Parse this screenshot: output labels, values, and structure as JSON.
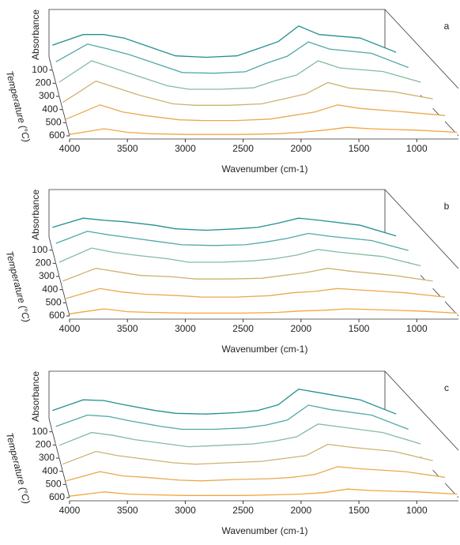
{
  "chart_data": [
    {
      "type": "waterfall",
      "panel_label": "a",
      "x_label": "Wavenumber (cm-1)",
      "y_label": "Absorbance",
      "z_label": "Temperature (°C)",
      "x": [
        4000,
        3700,
        3500,
        3300,
        3000,
        2800,
        2500,
        2200,
        2000,
        1800,
        1600,
        1400,
        1000,
        650
      ],
      "xlim": [
        4000,
        640
      ],
      "xticks": [
        4000,
        3500,
        3000,
        2500,
        2000,
        1500,
        1000
      ],
      "ylim": [
        0,
        1
      ],
      "zlim": [
        0,
        600
      ],
      "zticks": [
        100,
        200,
        300,
        400,
        500,
        600
      ],
      "series": [
        {
          "temperature": 100,
          "color": "#23908f",
          "values": [
            0.35,
            0.5,
            0.5,
            0.45,
            0.3,
            0.2,
            0.18,
            0.2,
            0.3,
            0.4,
            0.62,
            0.5,
            0.45,
            0.25
          ]
        },
        {
          "temperature": 200,
          "color": "#4fa9a6",
          "values": [
            0.3,
            0.55,
            0.48,
            0.4,
            0.25,
            0.15,
            0.14,
            0.16,
            0.28,
            0.38,
            0.58,
            0.48,
            0.42,
            0.22
          ]
        },
        {
          "temperature": 300,
          "color": "#86baa0",
          "values": [
            0.2,
            0.5,
            0.4,
            0.3,
            0.15,
            0.1,
            0.1,
            0.12,
            0.22,
            0.3,
            0.5,
            0.4,
            0.35,
            0.2
          ]
        },
        {
          "temperature": 400,
          "color": "#cdb272",
          "values": [
            0.1,
            0.4,
            0.3,
            0.2,
            0.08,
            0.06,
            0.06,
            0.08,
            0.15,
            0.22,
            0.38,
            0.3,
            0.25,
            0.15
          ]
        },
        {
          "temperature": 500,
          "color": "#e9a94f",
          "values": [
            0.05,
            0.25,
            0.15,
            0.1,
            0.04,
            0.03,
            0.03,
            0.05,
            0.1,
            0.15,
            0.25,
            0.2,
            0.15,
            0.1
          ]
        },
        {
          "temperature": 600,
          "color": "#f2a640",
          "values": [
            0.02,
            0.1,
            0.05,
            0.03,
            0.02,
            0.02,
            0.02,
            0.03,
            0.05,
            0.08,
            0.12,
            0.1,
            0.08,
            0.05
          ]
        }
      ]
    },
    {
      "type": "waterfall",
      "panel_label": "b",
      "x_label": "Wavenumber (cm-1)",
      "y_label": "Absorbance",
      "z_label": "Temperature (°C)",
      "x": [
        4000,
        3700,
        3500,
        3300,
        3000,
        2800,
        2500,
        2200,
        2000,
        1800,
        1600,
        1400,
        1000,
        650
      ],
      "xlim": [
        4000,
        640
      ],
      "xticks": [
        4000,
        3500,
        3000,
        2500,
        2000,
        1500,
        1000
      ],
      "ylim": [
        0,
        1
      ],
      "zlim": [
        0,
        600
      ],
      "zticks": [
        100,
        200,
        300,
        400,
        500,
        600
      ],
      "series": [
        {
          "temperature": 100,
          "color": "#23908f",
          "values": [
            0.32,
            0.45,
            0.42,
            0.4,
            0.35,
            0.3,
            0.28,
            0.3,
            0.32,
            0.38,
            0.45,
            0.42,
            0.35,
            0.2
          ]
        },
        {
          "temperature": 200,
          "color": "#4fa9a6",
          "values": [
            0.28,
            0.45,
            0.4,
            0.36,
            0.3,
            0.26,
            0.25,
            0.26,
            0.3,
            0.35,
            0.42,
            0.38,
            0.32,
            0.18
          ]
        },
        {
          "temperature": 300,
          "color": "#86baa0",
          "values": [
            0.2,
            0.4,
            0.34,
            0.3,
            0.25,
            0.2,
            0.2,
            0.22,
            0.25,
            0.3,
            0.38,
            0.34,
            0.28,
            0.15
          ]
        },
        {
          "temperature": 400,
          "color": "#cdb272",
          "values": [
            0.12,
            0.3,
            0.25,
            0.2,
            0.18,
            0.15,
            0.15,
            0.16,
            0.2,
            0.24,
            0.3,
            0.26,
            0.2,
            0.12
          ]
        },
        {
          "temperature": 500,
          "color": "#e9a94f",
          "values": [
            0.06,
            0.2,
            0.15,
            0.12,
            0.1,
            0.08,
            0.08,
            0.1,
            0.14,
            0.16,
            0.2,
            0.18,
            0.14,
            0.08
          ]
        },
        {
          "temperature": 600,
          "color": "#f2a640",
          "values": [
            0.03,
            0.1,
            0.06,
            0.05,
            0.04,
            0.04,
            0.04,
            0.05,
            0.07,
            0.08,
            0.1,
            0.09,
            0.07,
            0.04
          ]
        }
      ]
    },
    {
      "type": "waterfall",
      "panel_label": "c",
      "x_label": "Wavenumber (cm-1)",
      "y_label": "Absorbance",
      "z_label": "Temperature (°C)",
      "x": [
        4000,
        3700,
        3500,
        3300,
        3000,
        2800,
        2500,
        2200,
        2000,
        1800,
        1600,
        1400,
        1000,
        650
      ],
      "xlim": [
        4000,
        640
      ],
      "xticks": [
        4000,
        3500,
        3000,
        2500,
        2000,
        1500,
        1000
      ],
      "ylim": [
        0,
        1
      ],
      "zlim": [
        0,
        600
      ],
      "zticks": [
        100,
        200,
        300,
        400,
        500,
        600
      ],
      "series": [
        {
          "temperature": 100,
          "color": "#23908f",
          "values": [
            0.3,
            0.45,
            0.44,
            0.38,
            0.3,
            0.26,
            0.25,
            0.27,
            0.3,
            0.38,
            0.6,
            0.55,
            0.45,
            0.25
          ]
        },
        {
          "temperature": 200,
          "color": "#4fa9a6",
          "values": [
            0.26,
            0.42,
            0.4,
            0.34,
            0.26,
            0.22,
            0.22,
            0.24,
            0.28,
            0.35,
            0.56,
            0.5,
            0.42,
            0.22
          ]
        },
        {
          "temperature": 300,
          "color": "#86baa0",
          "values": [
            0.18,
            0.36,
            0.32,
            0.26,
            0.2,
            0.16,
            0.18,
            0.2,
            0.24,
            0.3,
            0.48,
            0.44,
            0.36,
            0.2
          ]
        },
        {
          "temperature": 400,
          "color": "#cdb272",
          "values": [
            0.1,
            0.28,
            0.22,
            0.18,
            0.12,
            0.1,
            0.12,
            0.14,
            0.18,
            0.22,
            0.38,
            0.34,
            0.28,
            0.15
          ]
        },
        {
          "temperature": 500,
          "color": "#e9a94f",
          "values": [
            0.05,
            0.18,
            0.12,
            0.1,
            0.06,
            0.05,
            0.07,
            0.08,
            0.1,
            0.14,
            0.25,
            0.22,
            0.18,
            0.1
          ]
        },
        {
          "temperature": 600,
          "color": "#f2a640",
          "values": [
            0.02,
            0.08,
            0.05,
            0.04,
            0.03,
            0.03,
            0.03,
            0.04,
            0.05,
            0.07,
            0.12,
            0.1,
            0.08,
            0.05
          ]
        }
      ]
    }
  ]
}
